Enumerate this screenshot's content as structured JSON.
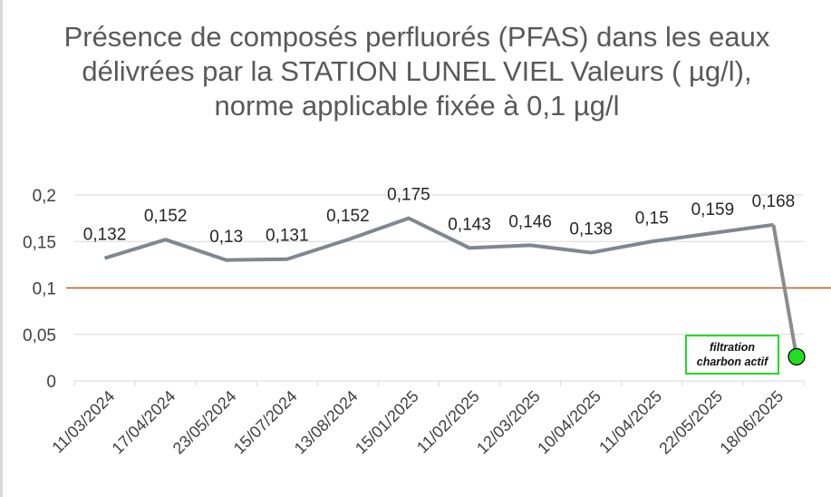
{
  "chart_data": {
    "type": "line",
    "title": "Présence de composés perfluorés (PFAS) dans les eaux délivrées par la STATION LUNEL VIEL Valeurs ( µg/l), norme applicable fixée à 0,1 µg/l",
    "categories": [
      "11/03/2024",
      "17/04/2024",
      "23/05/2024",
      "15/07/2024",
      "13/08/2024",
      "15/01/2025",
      "11/02/2025",
      "12/03/2025",
      "10/04/2025",
      "11/04/2025",
      "22/05/2025",
      "18/06/2025"
    ],
    "series": [
      {
        "values": [
          0.132,
          0.152,
          0.13,
          0.131,
          0.152,
          0.175,
          0.143,
          0.146,
          0.138,
          0.15,
          0.159,
          0.168
        ],
        "color": "#7f8790"
      }
    ],
    "data_labels": [
      "0,132",
      "0,152",
      "0,13",
      "0,131",
      "0,152",
      "0,175",
      "0,143",
      "0,146",
      "0,138",
      "0,15",
      "0,159",
      "0,168"
    ],
    "ylim": [
      0,
      0.2
    ],
    "yticks": [
      0,
      0.05,
      0.1,
      0.15,
      0.2
    ],
    "ytick_labels": [
      "0",
      "0,05",
      "0,1",
      "0,15",
      "0,2"
    ],
    "grid": true,
    "threshold": {
      "value": 0.1,
      "color": "#c55a11"
    },
    "post_filtration_point": {
      "value": 0.026,
      "color": "#22dd22"
    },
    "annotation": {
      "line1": "filtration",
      "line2": "charbon actif",
      "border_color": "#22dd22"
    }
  }
}
